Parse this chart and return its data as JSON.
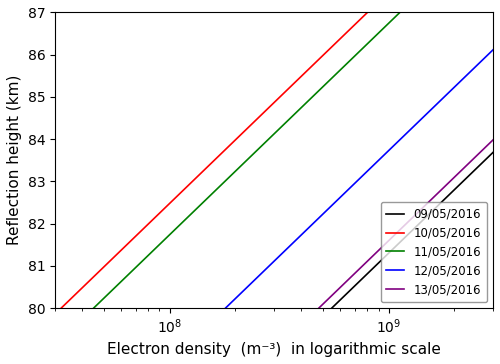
{
  "xlabel": "Electron density  (m⁻³)  in logarithmic scale",
  "ylabel": "Reflection height (km)",
  "ylim": [
    80,
    87
  ],
  "xlim": [
    30000000.0,
    3000000000.0
  ],
  "lines": [
    {
      "label": "09/05/2016",
      "color": "black",
      "Ne_at_80": 550000000.0,
      "beta": 0.46
    },
    {
      "label": "10/05/2016",
      "color": "red",
      "Ne_at_80": 32000000.0,
      "beta": 0.46
    },
    {
      "label": "11/05/2016",
      "color": "green",
      "Ne_at_80": 45000000.0,
      "beta": 0.46
    },
    {
      "label": "12/05/2016",
      "color": "blue",
      "Ne_at_80": 180000000.0,
      "beta": 0.46
    },
    {
      "label": "13/05/2016",
      "color": "purple",
      "Ne_at_80": 480000000.0,
      "beta": 0.46
    }
  ],
  "legend_loc": "lower right",
  "tick_fontsize": 10,
  "label_fontsize": 11,
  "linewidth": 1.2
}
